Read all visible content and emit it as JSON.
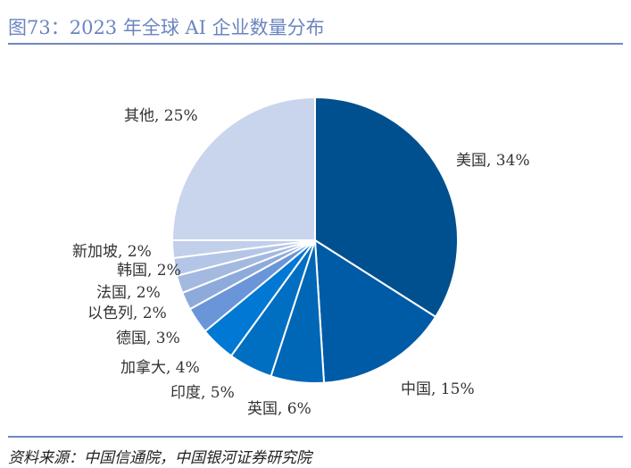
{
  "title": "图73：2023 年全球 AI 企业数量分布",
  "source": "资料来源：中国信通院，中国银河证券研究院",
  "chart_data": {
    "type": "pie",
    "title": "2023 年全球 AI 企业数量分布",
    "start": "top, clockwise",
    "slices": [
      {
        "name": "美国",
        "value": 34,
        "label": "美国, 34%",
        "color": "#00508f"
      },
      {
        "name": "中国",
        "value": 15,
        "label": "中国, 15%",
        "color": "#005ba6"
      },
      {
        "name": "英国",
        "value": 6,
        "label": "英国, 6%",
        "color": "#0066b6"
      },
      {
        "name": "印度",
        "value": 5,
        "label": "印度, 5%",
        "color": "#006fc2"
      },
      {
        "name": "加拿大",
        "value": 4,
        "label": "加拿大, 4%",
        "color": "#0078d4"
      },
      {
        "name": "德国",
        "value": 3,
        "label": "德国, 3%",
        "color": "#6a95d8"
      },
      {
        "name": "以色列",
        "value": 2,
        "label": "以色列, 2%",
        "color": "#8eaadb"
      },
      {
        "name": "法国",
        "value": 2,
        "label": "法国, 2%",
        "color": "#a3b9e0"
      },
      {
        "name": "韩国",
        "value": 2,
        "label": "韩国, 2%",
        "color": "#b4c6e7"
      },
      {
        "name": "新加坡",
        "value": 2,
        "label": "新加坡, 2%",
        "color": "#c2cfea"
      },
      {
        "name": "其他",
        "value": 25,
        "label": "其他, 25%",
        "color": "#c9d5ec"
      }
    ]
  }
}
